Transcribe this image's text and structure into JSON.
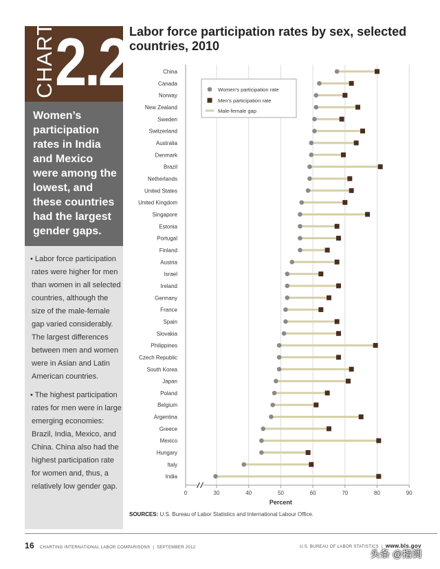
{
  "badge": {
    "word": "CHART",
    "number": "2.2"
  },
  "summary": "Women’s participation rates in India and Mexico were among the lowest, and these countries had the largest gender gaps.",
  "bullets": [
    "• Labor force participation rates were higher for men than women in all selected countries, although the size of the male-female gap varied considerably. The largest differences between men and women were in Asian and Latin American countries.",
    "• The highest participation rates for men were in large emerging economies: Brazil, India, Mexico, and China. China also had the highest participation rate for women and, thus, a relatively low gender gap."
  ],
  "sources": {
    "label": "SOURCES:",
    "text": "U.S. Bureau of Labor Statistics and International Labour Office."
  },
  "footer": {
    "page": "16",
    "left": "CHARTING INTERNATIONAL LABOR COMPARISONS",
    "date": "SEPTEMBER 2012",
    "right": "U.S. BUREAU OF LABOR STATISTICS",
    "site": "www.bls.gov"
  },
  "watermark": "头条 @指调",
  "colors": {
    "women": "#8a8a8a",
    "men": "#4a2e1f",
    "gap": "#d6cfa6",
    "badge": "#5c3a26"
  },
  "chart_data": {
    "type": "dumbbell",
    "title": "Labor force participation rates by sex, selected countries, 2010",
    "xlabel": "Percent",
    "xlim": [
      0,
      90
    ],
    "axis_break": "between 0 and 30",
    "xticks": [
      0,
      30,
      40,
      50,
      60,
      70,
      80,
      90
    ],
    "legend": [
      "Women’s participation rate",
      "Men’s participation rate",
      "Male-female gap"
    ],
    "categories": [
      "China",
      "Canada",
      "Norway",
      "New Zealand",
      "Sweden",
      "Switzerland",
      "Australia",
      "Denmark",
      "Brazil",
      "Netherlands",
      "United States",
      "United Kingdom",
      "Singapore",
      "Estonia",
      "Portugal",
      "Finland",
      "Austria",
      "Israel",
      "Ireland",
      "Germany",
      "France",
      "Spain",
      "Slovakia",
      "Philippines",
      "Czech Republic",
      "South Korea",
      "Japan",
      "Poland",
      "Belgium",
      "Argentina",
      "Greece",
      "Mexico",
      "Hungary",
      "Italy",
      "India"
    ],
    "series": [
      {
        "name": "Women",
        "values": [
          67.5,
          62,
          61,
          61,
          60.5,
          60.5,
          59.5,
          59.5,
          59,
          59,
          58.5,
          56.5,
          56,
          56,
          56,
          56,
          53.5,
          52,
          52,
          52,
          51.5,
          51.5,
          51,
          49.5,
          49.5,
          49.5,
          48.5,
          48,
          47.5,
          47,
          44.5,
          44,
          44,
          38.5,
          29
        ]
      },
      {
        "name": "Men",
        "values": [
          80,
          72,
          70,
          74,
          69,
          75.5,
          73.5,
          69.5,
          81,
          71.5,
          72,
          70,
          77,
          67.5,
          68,
          64.5,
          67.5,
          62.5,
          68,
          65,
          62.5,
          67.5,
          68,
          79.5,
          68,
          72,
          71,
          64.5,
          61,
          75,
          65,
          80.5,
          58.5,
          59.5,
          80.5
        ]
      }
    ]
  }
}
